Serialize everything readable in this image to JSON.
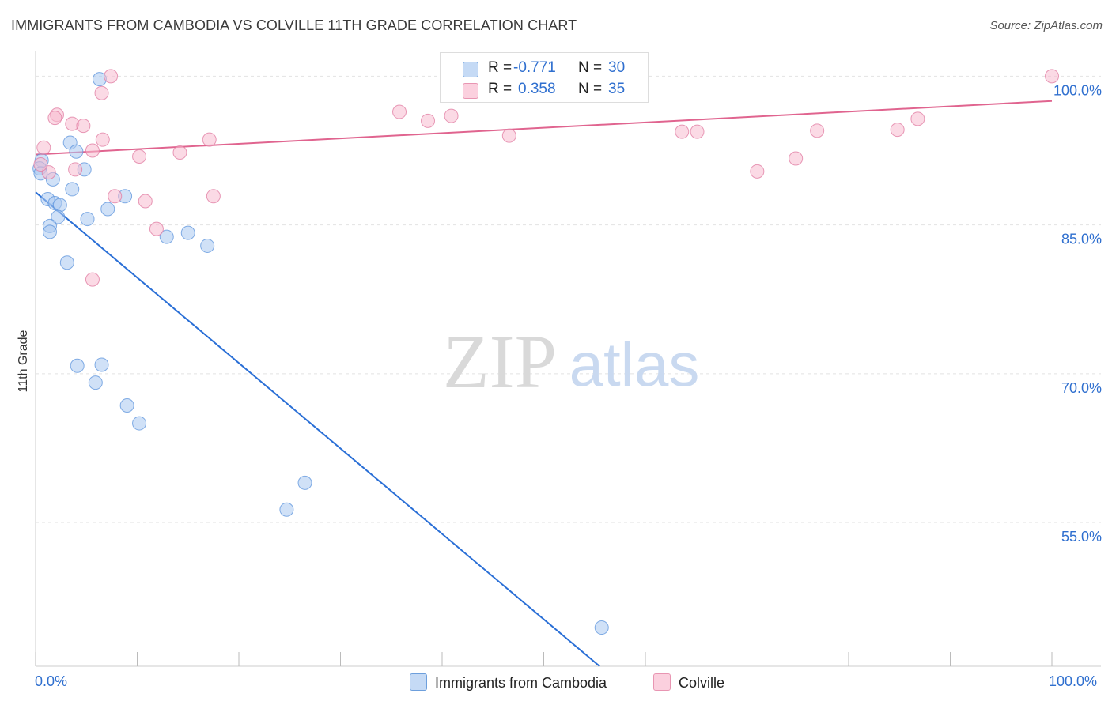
{
  "title": "IMMIGRANTS FROM CAMBODIA VS COLVILLE 11TH GRADE CORRELATION CHART",
  "source": "Source: ZipAtlas.com",
  "watermark": {
    "zip": "ZIP",
    "atlas": "atlas"
  },
  "legend": {
    "rows": [
      {
        "r_label": "R =",
        "r_value": "-0.771",
        "n_label": "N =",
        "n_value": "30",
        "color": "#a9c8f0",
        "border": "#6d9fdc"
      },
      {
        "r_label": "R =",
        "r_value": "0.358",
        "n_label": "N =",
        "n_value": "35",
        "color": "#f7bcd0",
        "border": "#e895b2"
      }
    ]
  },
  "bottom_legend": {
    "cambodia": "Immigrants from Cambodia",
    "colville": "Colville"
  },
  "chart_data": {
    "type": "scatter",
    "title": "IMMIGRANTS FROM CAMBODIA VS COLVILLE 11TH GRADE CORRELATION CHART",
    "xlabel": "",
    "ylabel": "11th Grade",
    "xlim": [
      0,
      100
    ],
    "ylim": [
      40.5,
      102.5
    ],
    "x_tick_labels": [
      "0.0%",
      "100.0%"
    ],
    "y_ticks": [
      {
        "value": 100,
        "label": "100.0%"
      },
      {
        "value": 85,
        "label": "85.0%"
      },
      {
        "value": 70,
        "label": "70.0%"
      },
      {
        "value": 55,
        "label": "55.0%"
      }
    ],
    "grid": true,
    "legend_position": "top-center",
    "series": [
      {
        "name": "Immigrants from Cambodia",
        "color": "#5b93dc",
        "fill": "#a9c8f0",
        "points": [
          [
            6.3,
            99.7
          ],
          [
            0.6,
            91.5
          ],
          [
            0.4,
            90.7
          ],
          [
            0.5,
            90.2
          ],
          [
            1.7,
            89.6
          ],
          [
            3.4,
            93.3
          ],
          [
            4.0,
            92.4
          ],
          [
            4.8,
            90.6
          ],
          [
            3.6,
            88.6
          ],
          [
            1.2,
            87.6
          ],
          [
            1.9,
            87.2
          ],
          [
            2.4,
            87.0
          ],
          [
            2.2,
            85.8
          ],
          [
            1.4,
            84.9
          ],
          [
            5.1,
            85.6
          ],
          [
            7.1,
            86.6
          ],
          [
            8.8,
            87.9
          ],
          [
            1.4,
            84.3
          ],
          [
            12.9,
            83.8
          ],
          [
            15.0,
            84.2
          ],
          [
            16.9,
            82.9
          ],
          [
            3.1,
            81.2
          ],
          [
            4.1,
            70.8
          ],
          [
            6.5,
            70.9
          ],
          [
            5.9,
            69.1
          ],
          [
            9.0,
            66.8
          ],
          [
            10.2,
            65.0
          ],
          [
            26.5,
            59.0
          ],
          [
            24.7,
            56.3
          ],
          [
            55.7,
            44.4
          ]
        ],
        "trend": {
          "x": [
            0,
            55.5
          ],
          "y": [
            88.3,
            40.5
          ]
        }
      },
      {
        "name": "Colville",
        "color": "#e07aa0",
        "fill": "#f7bcd0",
        "points": [
          [
            7.4,
            100.0
          ],
          [
            6.5,
            98.3
          ],
          [
            2.1,
            96.1
          ],
          [
            1.9,
            95.8
          ],
          [
            3.6,
            95.2
          ],
          [
            4.7,
            95.0
          ],
          [
            6.6,
            93.6
          ],
          [
            5.6,
            92.5
          ],
          [
            0.8,
            92.8
          ],
          [
            10.2,
            91.9
          ],
          [
            14.2,
            92.3
          ],
          [
            17.1,
            93.6
          ],
          [
            1.3,
            90.3
          ],
          [
            3.9,
            90.6
          ],
          [
            7.8,
            87.9
          ],
          [
            10.8,
            87.4
          ],
          [
            17.5,
            87.9
          ],
          [
            11.9,
            84.6
          ],
          [
            5.6,
            79.5
          ],
          [
            40.9,
            96.0
          ],
          [
            35.8,
            96.4
          ],
          [
            38.6,
            95.5
          ],
          [
            42.4,
            100.0
          ],
          [
            46.6,
            94.0
          ],
          [
            50.9,
            100.0
          ],
          [
            53.6,
            100.0
          ],
          [
            63.6,
            94.4
          ],
          [
            65.1,
            94.4
          ],
          [
            71.0,
            90.4
          ],
          [
            74.8,
            91.7
          ],
          [
            76.9,
            94.5
          ],
          [
            84.8,
            94.6
          ],
          [
            86.8,
            95.7
          ],
          [
            100.0,
            100.0
          ],
          [
            0.5,
            91.1
          ]
        ],
        "trend": {
          "x": [
            0,
            100
          ],
          "y": [
            92.1,
            97.5
          ]
        }
      }
    ]
  }
}
